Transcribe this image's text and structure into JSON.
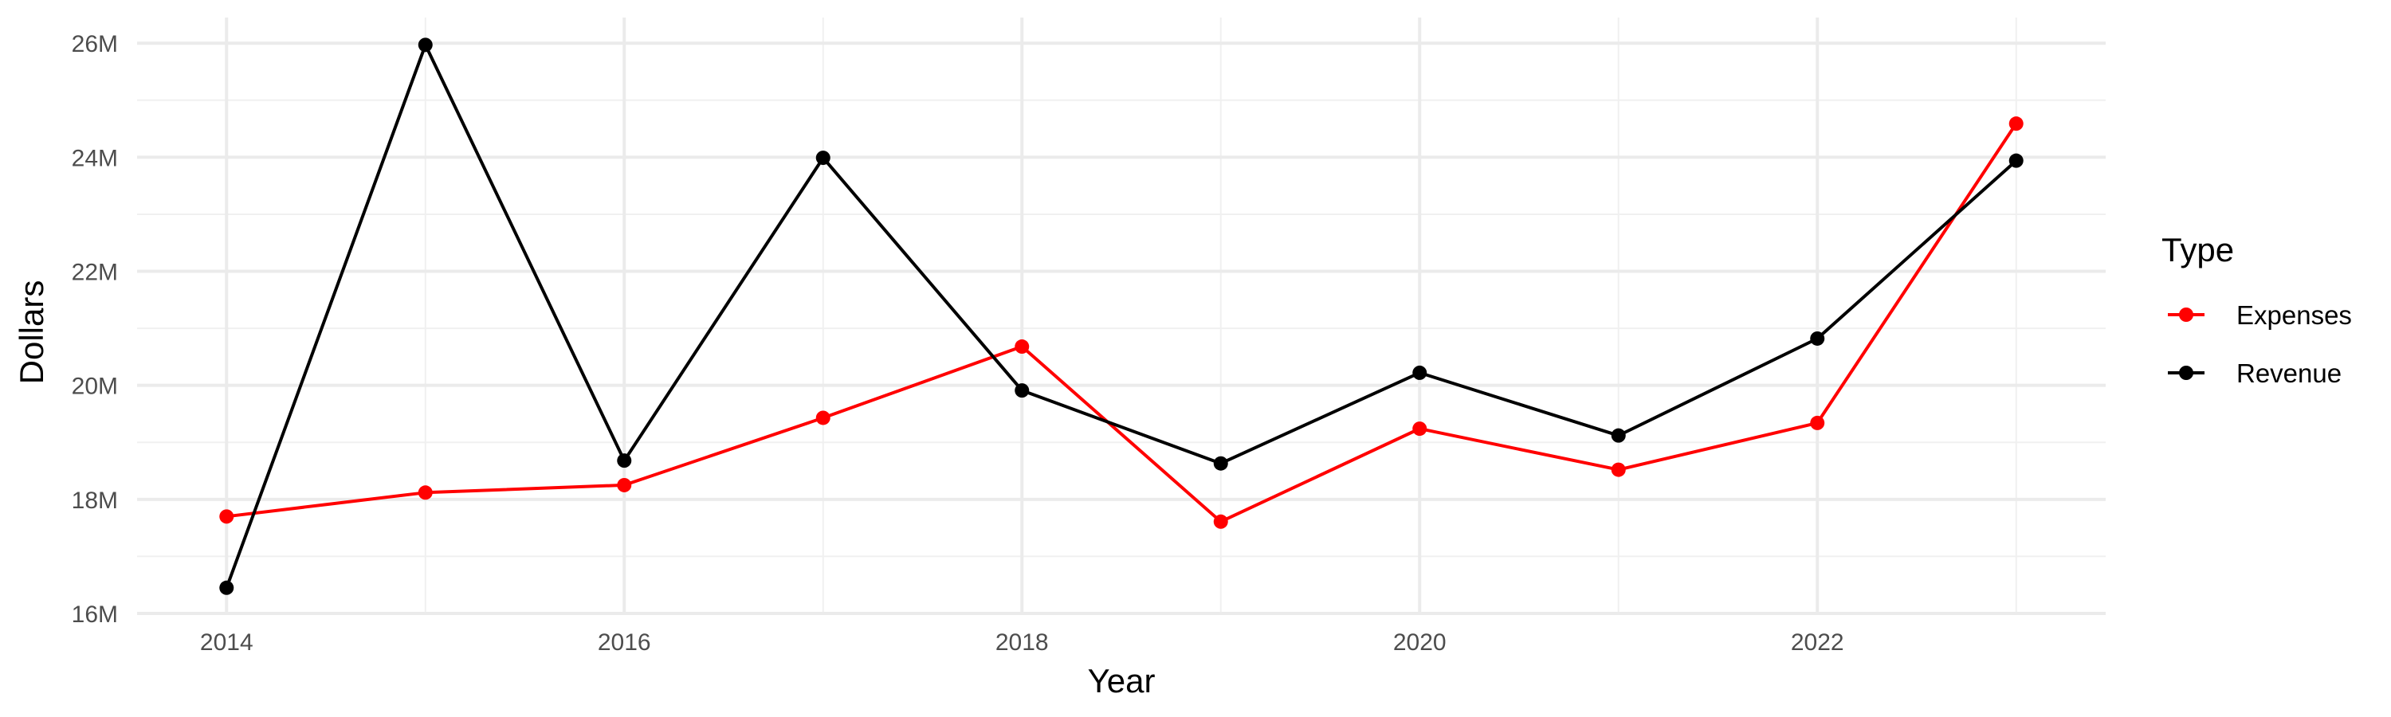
{
  "chart_data": {
    "type": "line",
    "title": "",
    "xlabel": "Year",
    "ylabel": "Dollars",
    "x": [
      2014,
      2015,
      2016,
      2017,
      2018,
      2019,
      2020,
      2021,
      2022,
      2023
    ],
    "x_ticks": [
      2014,
      2016,
      2018,
      2020,
      2022
    ],
    "x_tick_labels": [
      "2014",
      "2016",
      "2018",
      "2020",
      "2022"
    ],
    "xlim": [
      2013.55,
      2023.45
    ],
    "y_ticks": [
      16000000,
      18000000,
      20000000,
      22000000,
      24000000,
      26000000
    ],
    "y_tick_labels": [
      "16M",
      "18M",
      "20M",
      "22M",
      "24M",
      "26M"
    ],
    "ylim": [
      16000000,
      26450000
    ],
    "grid": true,
    "legend": {
      "title": "Type",
      "position": "right"
    },
    "series": [
      {
        "name": "Expenses",
        "color": "#ff0000",
        "values": [
          17700000,
          18120000,
          18250000,
          19430000,
          20680000,
          17610000,
          19240000,
          18520000,
          19340000,
          24590000
        ]
      },
      {
        "name": "Revenue",
        "color": "#000000",
        "values": [
          16450000,
          25970000,
          18680000,
          23990000,
          19910000,
          18630000,
          20220000,
          19120000,
          20820000,
          23940000
        ]
      }
    ]
  }
}
